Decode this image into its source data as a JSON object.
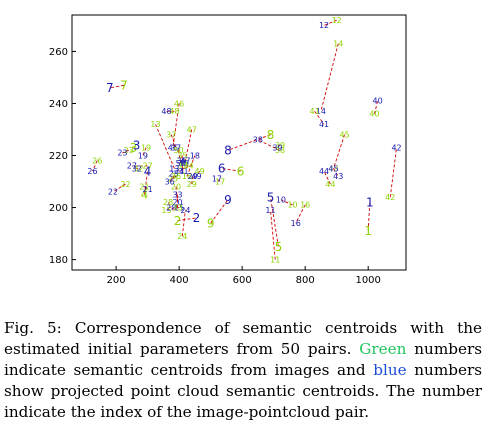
{
  "chart_data": {
    "type": "scatter",
    "xlim": [
      60,
      1120
    ],
    "ylim": [
      176,
      274
    ],
    "xticks": [
      200,
      400,
      600,
      800,
      1000
    ],
    "yticks": [
      180,
      200,
      220,
      240,
      260
    ],
    "grid": false,
    "colors": {
      "image": "#8fd400",
      "cloud": "#1a1ab0",
      "line": "#d40000"
    },
    "pairs": [
      {
        "id": "1",
        "img": [
          1000,
          191
        ],
        "pc": [
          1005,
          202
        ]
      },
      {
        "id": "2",
        "img": [
          395,
          195
        ],
        "pc": [
          455,
          196
        ]
      },
      {
        "id": "3",
        "img": [
          255,
          223
        ],
        "pc": [
          265,
          224
        ]
      },
      {
        "id": "4",
        "img": [
          290,
          205
        ],
        "pc": [
          300,
          214
        ]
      },
      {
        "id": "5",
        "img": [
          715,
          185
        ],
        "pc": [
          690,
          204
        ]
      },
      {
        "id": "6",
        "img": [
          595,
          214
        ],
        "pc": [
          535,
          215
        ]
      },
      {
        "id": "7",
        "img": [
          225,
          247
        ],
        "pc": [
          180,
          246
        ]
      },
      {
        "id": "8",
        "img": [
          690,
          228
        ],
        "pc": [
          555,
          222
        ]
      },
      {
        "id": "9",
        "img": [
          500,
          194
        ],
        "pc": [
          555,
          203
        ]
      },
      {
        "id": "10",
        "img": [
          760,
          201
        ],
        "pc": [
          723,
          203
        ]
      },
      {
        "id": "11",
        "img": [
          705,
          180
        ],
        "pc": [
          690,
          199
        ]
      },
      {
        "id": "12",
        "img": [
          900,
          272
        ],
        "pc": [
          860,
          270
        ]
      },
      {
        "id": "13",
        "img": [
          325,
          232
        ],
        "pc": [
          385,
          215
        ]
      },
      {
        "id": "14",
        "img": [
          905,
          263
        ],
        "pc": [
          850,
          237
        ]
      },
      {
        "id": "15",
        "img": [
          360,
          199
        ],
        "pc": [
          400,
          200
        ]
      },
      {
        "id": "16",
        "img": [
          800,
          201
        ],
        "pc": [
          770,
          194
        ]
      },
      {
        "id": "17",
        "img": [
          530,
          210
        ],
        "pc": [
          520,
          211
        ]
      },
      {
        "id": "18",
        "img": [
          425,
          212
        ],
        "pc": [
          450,
          220
        ]
      },
      {
        "id": "19",
        "img": [
          295,
          223
        ],
        "pc": [
          285,
          220
        ]
      },
      {
        "id": "20",
        "img": [
          390,
          208
        ],
        "pc": [
          395,
          202
        ]
      },
      {
        "id": "21",
        "img": [
          290,
          208
        ],
        "pc": [
          300,
          207
        ]
      },
      {
        "id": "22",
        "img": [
          230,
          209
        ],
        "pc": [
          190,
          206
        ]
      },
      {
        "id": "23",
        "img": [
          240,
          222
        ],
        "pc": [
          220,
          221
        ]
      },
      {
        "id": "24",
        "img": [
          410,
          189
        ],
        "pc": [
          420,
          199
        ]
      },
      {
        "id": "25",
        "img": [
          380,
          211
        ],
        "pc": [
          383,
          213
        ]
      },
      {
        "id": "26",
        "img": [
          140,
          218
        ],
        "pc": [
          125,
          214
        ]
      },
      {
        "id": "27",
        "img": [
          300,
          216
        ],
        "pc": [
          250,
          216
        ]
      },
      {
        "id": "28",
        "img": [
          365,
          202
        ],
        "pc": [
          375,
          200
        ]
      },
      {
        "id": "29",
        "img": [
          440,
          209
        ],
        "pc": [
          443,
          212
        ]
      },
      {
        "id": "30",
        "img": [
          410,
          217
        ],
        "pc": [
          415,
          217
        ]
      },
      {
        "id": "31",
        "img": [
          410,
          216
        ],
        "pc": [
          414,
          214
        ]
      },
      {
        "id": "32",
        "img": [
          270,
          215
        ],
        "pc": [
          265,
          215
        ]
      },
      {
        "id": "33",
        "img": [
          395,
          200
        ],
        "pc": [
          395,
          205
        ]
      },
      {
        "id": "34",
        "img": [
          430,
          216
        ],
        "pc": [
          400,
          214
        ]
      },
      {
        "id": "35",
        "img": [
          410,
          220
        ],
        "pc": [
          408,
          218
        ]
      },
      {
        "id": "36",
        "img": [
          390,
          212
        ],
        "pc": [
          370,
          210
        ]
      },
      {
        "id": "37",
        "img": [
          375,
          228
        ],
        "pc": [
          390,
          223
        ]
      },
      {
        "id": "38",
        "img": [
          720,
          222
        ],
        "pc": [
          650,
          226
        ]
      },
      {
        "id": "39",
        "img": [
          720,
          224
        ],
        "pc": [
          712,
          223
        ]
      },
      {
        "id": "40",
        "img": [
          1020,
          236
        ],
        "pc": [
          1030,
          241
        ]
      },
      {
        "id": "41",
        "img": [
          830,
          237
        ],
        "pc": [
          860,
          232
        ]
      },
      {
        "id": "42",
        "img": [
          1070,
          204
        ],
        "pc": [
          1090,
          223
        ]
      },
      {
        "id": "43",
        "img": [
          890,
          215
        ],
        "pc": [
          905,
          212
        ]
      },
      {
        "id": "44",
        "img": [
          880,
          209
        ],
        "pc": [
          860,
          214
        ]
      },
      {
        "id": "45",
        "img": [
          925,
          228
        ],
        "pc": [
          890,
          215
        ]
      },
      {
        "id": "46",
        "img": [
          400,
          240
        ],
        "pc": [
          380,
          223
        ]
      },
      {
        "id": "47",
        "img": [
          440,
          230
        ],
        "pc": [
          420,
          218
        ]
      },
      {
        "id": "48",
        "img": [
          385,
          237
        ],
        "pc": [
          360,
          237
        ]
      },
      {
        "id": "49",
        "img": [
          465,
          214
        ],
        "pc": [
          455,
          212
        ]
      },
      {
        "id": "50",
        "img": [
          398,
          222
        ],
        "pc": [
          405,
          217
        ]
      }
    ]
  },
  "caption": {
    "prefix": "Fig. 5: Correspondence of semantic centroids with the estimated initial parameters from 50 pairs. ",
    "green_word": "Green",
    "middle": " numbers indicate semantic centroids from images and ",
    "blue_word": "blue",
    "suffix": " numbers show projected point cloud semantic centroids. The number indicate the index of the image-pointcloud pair."
  }
}
